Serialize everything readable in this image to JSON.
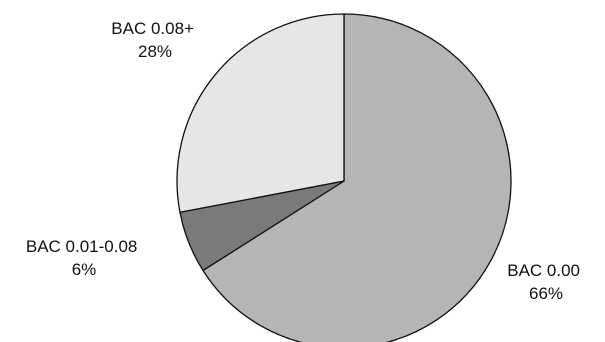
{
  "chart_data": {
    "type": "pie",
    "title": "",
    "start_angle_deg": 0,
    "direction": "clockwise",
    "slices": [
      {
        "label": "BAC 0.00",
        "value": 66,
        "value_label": "66%",
        "color": "#b5b5b5"
      },
      {
        "label": "BAC 0.01-0.08",
        "value": 6,
        "value_label": "6%",
        "color": "#7a7a7a"
      },
      {
        "label": "BAC 0.08+",
        "value": 28,
        "value_label": "28%",
        "color": "#e6e6e6"
      }
    ],
    "legend": "none",
    "label_placement": "outside"
  }
}
